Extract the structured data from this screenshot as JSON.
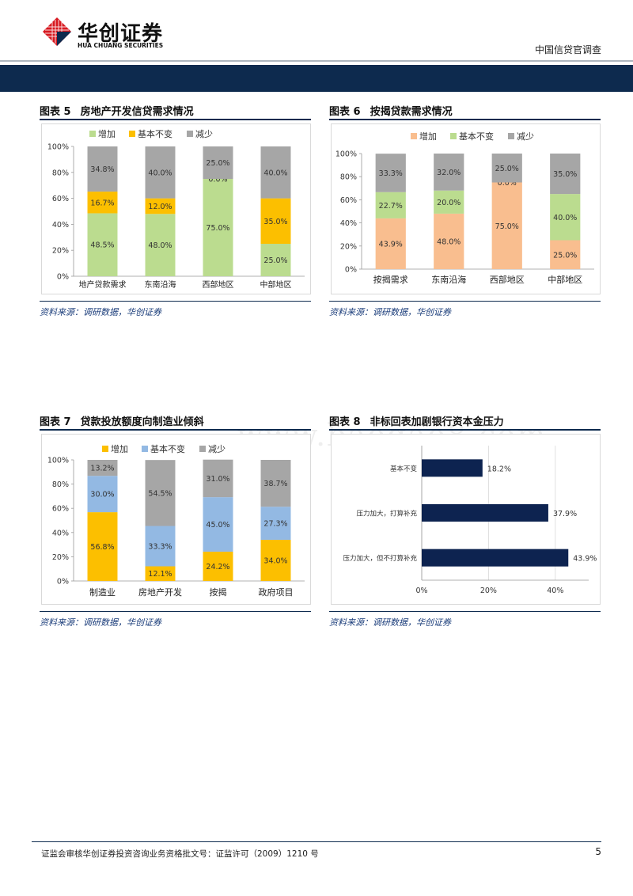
{
  "header": {
    "logo_cn": "华创证券",
    "logo_en": "HUA CHUANG SECURITIES",
    "report_type": "中国信贷官调查"
  },
  "colors": {
    "navy": "#0d2a4e",
    "yellow": "#fcbf00",
    "green": "#bbdc8f",
    "gray": "#a6a6a6",
    "orange": "#f9be8f",
    "blue": "#93b9e3",
    "bar_navy": "#0d2350",
    "logo_red": "#d71920"
  },
  "figures": [
    {
      "number": "图表 5",
      "title": "房地产开发信贷需求情况",
      "source": "资料来源：调研数据，华创证券"
    },
    {
      "number": "图表 6",
      "title": "按揭贷款需求情况",
      "source": "资料来源：调研数据，华创证券"
    },
    {
      "number": "图表 7",
      "title": "贷款投放额度向制造业倾斜",
      "source": "资料来源：调研数据，华创证券"
    },
    {
      "number": "图表 8",
      "title": "非标回表加剧银行资本金压力",
      "source": "资料来源：调研数据，华创证券"
    }
  ],
  "chart_data": [
    {
      "type": "bar",
      "stacked": true,
      "categories": [
        "地产贷款需求",
        "东南沿海",
        "西部地区",
        "中部地区"
      ],
      "series": [
        {
          "name": "增加",
          "color": "#bbdc8f",
          "values": [
            48.5,
            48.0,
            75.0,
            25.0
          ]
        },
        {
          "name": "基本不变",
          "color": "#fcbf00",
          "values": [
            16.7,
            12.0,
            0.0,
            35.0
          ]
        },
        {
          "name": "减少",
          "color": "#a6a6a6",
          "values": [
            34.8,
            40.0,
            25.0,
            40.0
          ]
        }
      ],
      "legend_colors": [
        "#bbdc8f",
        "#fcbf00",
        "#a6a6a6"
      ],
      "ylim": [
        0,
        100
      ],
      "yticks": [
        "0%",
        "20%",
        "40%",
        "60%",
        "80%",
        "100%"
      ],
      "legend_position": "top-left",
      "grid": false
    },
    {
      "type": "bar",
      "stacked": true,
      "categories": [
        "按揭需求",
        "东南沿海",
        "西部地区",
        "中部地区"
      ],
      "series": [
        {
          "name": "增加",
          "color": "#f9be8f",
          "values": [
            43.9,
            48.0,
            75.0,
            25.0
          ]
        },
        {
          "name": "基本不变",
          "color": "#bbdc8f",
          "values": [
            22.7,
            20.0,
            0.0,
            40.0
          ]
        },
        {
          "name": "减少",
          "color": "#a6a6a6",
          "values": [
            33.3,
            32.0,
            25.0,
            35.0
          ]
        }
      ],
      "ylim": [
        0,
        100
      ],
      "yticks": [
        "0%",
        "20%",
        "40%",
        "60%",
        "80%",
        "100%"
      ],
      "legend_position": "top-left",
      "grid": false
    },
    {
      "type": "bar",
      "stacked": true,
      "categories": [
        "制造业",
        "房地产开发",
        "按揭",
        "政府项目"
      ],
      "series": [
        {
          "name": "增加",
          "color": "#fcbf00",
          "values": [
            56.8,
            12.1,
            24.2,
            34.0
          ]
        },
        {
          "name": "基本不变",
          "color": "#93b9e3",
          "values": [
            30.0,
            33.3,
            45.0,
            27.3
          ]
        },
        {
          "name": "减少",
          "color": "#a6a6a6",
          "values": [
            13.2,
            54.5,
            31.0,
            38.7
          ]
        }
      ],
      "ylim": [
        0,
        100
      ],
      "yticks": [
        "0%",
        "20%",
        "40%",
        "60%",
        "80%",
        "100%"
      ],
      "legend_position": "top-left",
      "grid": false
    },
    {
      "type": "bar",
      "orientation": "horizontal",
      "categories": [
        "基本不变",
        "压力加大，打算补充",
        "压力加大，但不打算补充"
      ],
      "values": [
        18.2,
        37.9,
        43.9
      ],
      "labels": [
        "18.2%",
        "37.9%",
        "43.9%"
      ],
      "color": "#0d2350",
      "xlim": [
        0,
        50
      ],
      "xticks": [
        "0%",
        "20%",
        "40%"
      ],
      "grid": true
    }
  ],
  "watermark": "www.baogao8.com",
  "footer": {
    "text": "证监会审核华创证券投资咨询业务资格批文号：证监许可（2009）1210 号",
    "page": "5"
  }
}
